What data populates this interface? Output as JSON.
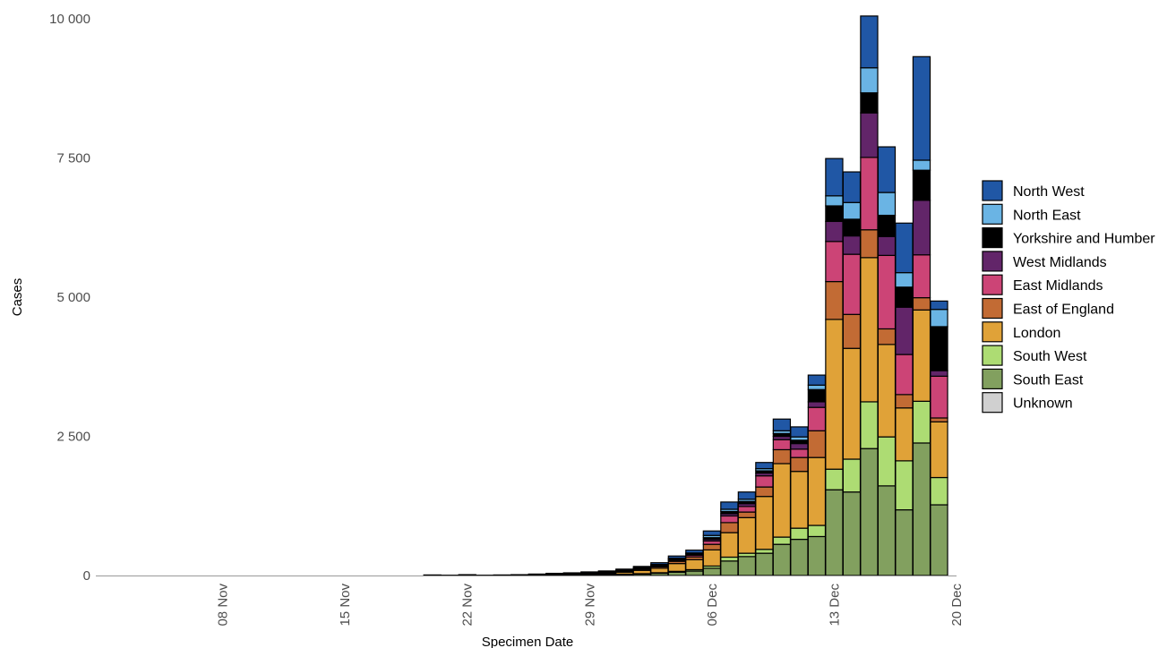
{
  "chart_data": {
    "type": "bar",
    "stacked": true,
    "xlabel": "Specimen Date",
    "ylabel": "Cases",
    "ylim": [
      0,
      10000
    ],
    "yticks": [
      0,
      2500,
      5000,
      7500,
      10000
    ],
    "ytick_labels": [
      "0",
      "2 500",
      "5 000",
      "7 500",
      "10 000"
    ],
    "xlim": [
      "2020-11-01",
      "2020-12-20"
    ],
    "xtick_dates": [
      "2020-11-08",
      "2020-11-15",
      "2020-11-22",
      "2020-11-29",
      "2020-12-06",
      "2020-12-13",
      "2020-12-20"
    ],
    "xtick_labels": [
      "08 Nov",
      "15 Nov",
      "22 Nov",
      "29 Nov",
      "06 Dec",
      "13 Dec",
      "20 Dec"
    ],
    "grid": false,
    "legend_position": "right",
    "categories": [
      "2020-11-19",
      "2020-11-20",
      "2020-11-21",
      "2020-11-22",
      "2020-11-23",
      "2020-11-24",
      "2020-11-25",
      "2020-11-26",
      "2020-11-27",
      "2020-11-28",
      "2020-11-29",
      "2020-11-30",
      "2020-12-01",
      "2020-12-02",
      "2020-12-03",
      "2020-12-04",
      "2020-12-05",
      "2020-12-06",
      "2020-12-07",
      "2020-12-08",
      "2020-12-09",
      "2020-12-10",
      "2020-12-11",
      "2020-12-12",
      "2020-12-13",
      "2020-12-14",
      "2020-12-15",
      "2020-12-16",
      "2020-12-17",
      "2020-12-18",
      "2020-12-19"
    ],
    "series": [
      {
        "name": "South East",
        "color": "#82a05f",
        "values": [
          0,
          0,
          0,
          0,
          0,
          0,
          0,
          0,
          0,
          5,
          10,
          15,
          20,
          25,
          40,
          60,
          80,
          130,
          260,
          340,
          400,
          560,
          650,
          700,
          1540,
          1500,
          2280,
          1610,
          1180,
          2380,
          1270
        ]
      },
      {
        "name": "South West",
        "color": "#addc73",
        "values": [
          0,
          0,
          0,
          0,
          0,
          0,
          0,
          0,
          0,
          2,
          3,
          5,
          5,
          8,
          10,
          15,
          25,
          40,
          70,
          60,
          70,
          130,
          200,
          200,
          370,
          590,
          840,
          880,
          880,
          750,
          490
        ]
      },
      {
        "name": "London",
        "color": "#e0a238",
        "values": [
          0,
          0,
          0,
          0,
          0,
          0,
          3,
          5,
          8,
          10,
          15,
          20,
          35,
          60,
          80,
          140,
          180,
          290,
          440,
          640,
          950,
          1320,
          1020,
          1220,
          2690,
          1990,
          2590,
          1660,
          950,
          1640,
          1000
        ]
      },
      {
        "name": "East of England",
        "color": "#c26b34",
        "values": [
          0,
          0,
          0,
          0,
          0,
          0,
          1,
          2,
          3,
          3,
          5,
          10,
          10,
          20,
          25,
          40,
          50,
          100,
          180,
          100,
          170,
          250,
          250,
          480,
          680,
          610,
          500,
          280,
          240,
          220,
          70
        ]
      },
      {
        "name": "East Midlands",
        "color": "#cc4476",
        "values": [
          0,
          0,
          0,
          0,
          0,
          0,
          1,
          2,
          3,
          3,
          5,
          5,
          10,
          15,
          20,
          20,
          30,
          60,
          120,
          100,
          200,
          180,
          150,
          420,
          720,
          1080,
          1300,
          1320,
          720,
          770,
          750
        ]
      },
      {
        "name": "West Midlands",
        "color": "#622569",
        "values": [
          0,
          0,
          0,
          0,
          0,
          0,
          0,
          1,
          2,
          2,
          3,
          5,
          5,
          5,
          10,
          15,
          20,
          30,
          40,
          50,
          50,
          60,
          100,
          100,
          360,
          330,
          800,
          340,
          850,
          980,
          100
        ]
      },
      {
        "name": "Yorkshire and Humber",
        "color": "#000000",
        "values": [
          0,
          0,
          0,
          0,
          0,
          0,
          0,
          1,
          2,
          2,
          2,
          5,
          5,
          5,
          5,
          10,
          10,
          30,
          40,
          40,
          40,
          50,
          60,
          220,
          280,
          300,
          360,
          380,
          360,
          540,
          790
        ]
      },
      {
        "name": "North East",
        "color": "#6ab4e4",
        "values": [
          0,
          0,
          0,
          0,
          0,
          0,
          0,
          0,
          1,
          1,
          2,
          2,
          5,
          5,
          10,
          10,
          10,
          40,
          40,
          40,
          40,
          50,
          60,
          80,
          180,
          300,
          450,
          410,
          260,
          180,
          310
        ]
      },
      {
        "name": "North West",
        "color": "#2057a5",
        "values": [
          0,
          10,
          5,
          15,
          5,
          10,
          10,
          15,
          20,
          20,
          20,
          15,
          20,
          20,
          30,
          40,
          50,
          80,
          130,
          130,
          110,
          210,
          180,
          180,
          670,
          550,
          930,
          820,
          890,
          1860,
          150
        ]
      },
      {
        "name": "Unknown",
        "color": "#d0d0d0",
        "values": [
          0,
          0,
          0,
          0,
          0,
          0,
          0,
          0,
          0,
          0,
          0,
          0,
          0,
          0,
          0,
          0,
          0,
          0,
          0,
          0,
          0,
          0,
          0,
          0,
          0,
          0,
          0,
          0,
          0,
          0,
          0
        ]
      }
    ],
    "legend": [
      "North West",
      "North East",
      "Yorkshire and Humber",
      "West Midlands",
      "East Midlands",
      "East of England",
      "London",
      "South West",
      "South East",
      "Unknown"
    ]
  }
}
